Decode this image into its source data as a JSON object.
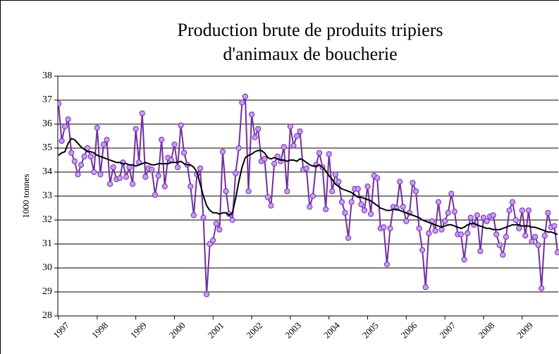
{
  "chart_data": {
    "type": "line",
    "title": [
      "Production brute de produits tripiers",
      "d'animaux de boucherie"
    ],
    "y_label": "1000 tonnes",
    "categories": [
      "1997",
      null,
      null,
      null,
      null,
      null,
      null,
      null,
      null,
      null,
      null,
      null,
      "1998",
      null,
      null,
      null,
      null,
      null,
      null,
      null,
      null,
      null,
      null,
      null,
      "1999",
      null,
      null,
      null,
      null,
      null,
      null,
      null,
      null,
      null,
      null,
      null,
      "2000",
      null,
      null,
      null,
      null,
      null,
      null,
      null,
      null,
      null,
      null,
      null,
      "2001",
      null,
      null,
      null,
      null,
      null,
      null,
      null,
      null,
      null,
      null,
      null,
      "2002",
      null,
      null,
      null,
      null,
      null,
      null,
      null,
      null,
      null,
      null,
      null,
      "2003",
      null,
      null,
      null,
      null,
      null,
      null,
      null,
      null,
      null,
      null,
      null,
      "2004",
      null,
      null,
      null,
      null,
      null,
      null,
      null,
      null,
      null,
      null,
      null,
      "2005",
      null,
      null,
      null,
      null,
      null,
      null,
      null,
      null,
      null,
      null,
      null,
      "2006",
      null,
      null,
      null,
      null,
      null,
      null,
      null,
      null,
      null,
      null,
      null,
      "2007",
      null,
      null,
      null,
      null,
      null,
      null,
      null,
      null,
      null,
      null,
      null,
      "2008",
      null,
      null,
      null,
      null,
      null,
      null,
      null,
      null,
      null,
      null,
      null,
      "2009",
      null,
      null,
      null,
      null,
      null,
      null,
      null,
      null,
      null,
      null,
      null
    ],
    "series": [
      {
        "color": "#7030a0",
        "marker_fill": "#cc99ff",
        "markers": true,
        "values": [
          36.85,
          35.3,
          35.9,
          36.2,
          34.8,
          34.45,
          33.9,
          34.3,
          34.65,
          35.0,
          34.65,
          34.0,
          35.85,
          33.9,
          35.15,
          35.35,
          33.5,
          34.2,
          33.7,
          33.75,
          34.4,
          33.8,
          34.2,
          33.5,
          35.8,
          34.4,
          36.45,
          33.8,
          34.15,
          34.1,
          33.05,
          33.85,
          35.35,
          33.4,
          34.6,
          34.5,
          35.15,
          34.2,
          35.95,
          34.8,
          34.3,
          33.4,
          32.2,
          33.9,
          34.15,
          32.1,
          28.9,
          31.0,
          31.15,
          31.85,
          31.6,
          34.85,
          33.2,
          32.25,
          32.0,
          33.95,
          35.0,
          36.9,
          37.15,
          33.2,
          36.4,
          35.45,
          35.8,
          34.45,
          34.55,
          32.95,
          32.6,
          34.35,
          34.65,
          34.45,
          35.05,
          33.2,
          35.9,
          35.1,
          35.5,
          35.7,
          34.1,
          34.15,
          32.55,
          33.0,
          34.3,
          34.8,
          34.2,
          32.45,
          34.75,
          33.2,
          33.9,
          33.6,
          32.75,
          32.3,
          31.25,
          32.75,
          33.3,
          33.3,
          32.65,
          32.4,
          33.4,
          32.25,
          33.85,
          33.75,
          31.65,
          31.7,
          30.15,
          31.65,
          32.55,
          32.5,
          33.6,
          32.55,
          31.95,
          32.3,
          33.55,
          33.2,
          31.65,
          30.75,
          29.2,
          31.45,
          31.95,
          31.55,
          32.75,
          31.6,
          31.95,
          32.3,
          33.1,
          32.35,
          31.4,
          31.4,
          30.35,
          31.45,
          32.1,
          31.8,
          32.2,
          30.7,
          32.1,
          31.95,
          32.15,
          32.2,
          31.4,
          30.95,
          30.55,
          31.3,
          32.4,
          32.75,
          32.0,
          31.65,
          32.4,
          31.35,
          32.4,
          31.1,
          31.3,
          30.95,
          29.15,
          31.35,
          32.3,
          31.7,
          31.75,
          30.65
        ]
      },
      {
        "color": "#000000",
        "markers": false,
        "values": [
          34.7,
          34.8,
          34.85,
          35.2,
          35.4,
          35.35,
          35.2,
          35.05,
          34.95,
          34.85,
          34.85,
          34.8,
          34.7,
          34.65,
          34.6,
          34.55,
          34.5,
          34.45,
          34.4,
          34.4,
          34.35,
          34.35,
          34.3,
          34.3,
          34.25,
          34.3,
          34.35,
          34.4,
          34.35,
          34.3,
          34.3,
          34.35,
          34.35,
          34.35,
          34.35,
          34.4,
          34.4,
          34.4,
          34.45,
          34.35,
          34.3,
          34.3,
          34.2,
          34.0,
          33.5,
          33.0,
          32.6,
          32.4,
          32.3,
          32.3,
          32.25,
          32.3,
          32.3,
          32.2,
          32.3,
          32.9,
          33.6,
          34.2,
          34.6,
          34.7,
          34.75,
          34.85,
          34.9,
          34.9,
          34.8,
          34.6,
          34.55,
          34.6,
          34.55,
          34.5,
          34.5,
          34.45,
          34.5,
          34.5,
          34.45,
          34.55,
          34.5,
          34.4,
          34.3,
          34.25,
          34.25,
          34.3,
          34.2,
          34.05,
          33.85,
          33.7,
          33.5,
          33.4,
          33.3,
          33.25,
          33.2,
          33.15,
          33.05,
          32.95,
          32.95,
          32.9,
          32.85,
          32.8,
          32.7,
          32.6,
          32.5,
          32.45,
          32.4,
          32.4,
          32.45,
          32.45,
          32.4,
          32.35,
          32.3,
          32.25,
          32.2,
          32.15,
          32.1,
          32.0,
          31.95,
          31.9,
          31.85,
          31.8,
          31.75,
          31.7,
          31.75,
          31.8,
          31.8,
          31.75,
          31.7,
          31.65,
          31.7,
          31.8,
          31.85,
          31.85,
          31.8,
          31.75,
          31.7,
          31.65,
          31.65,
          31.6,
          31.6,
          31.6,
          31.65,
          31.7,
          31.75,
          31.8,
          31.8,
          31.8,
          31.75,
          31.75,
          31.75,
          31.7,
          31.7,
          31.65,
          31.6,
          31.55,
          31.5,
          31.5,
          31.45,
          31.4
        ]
      }
    ],
    "ylim": [
      28,
      38
    ],
    "yticks": [
      28,
      29,
      30,
      31,
      32,
      33,
      34,
      35,
      36,
      37,
      38
    ],
    "grid": true
  }
}
